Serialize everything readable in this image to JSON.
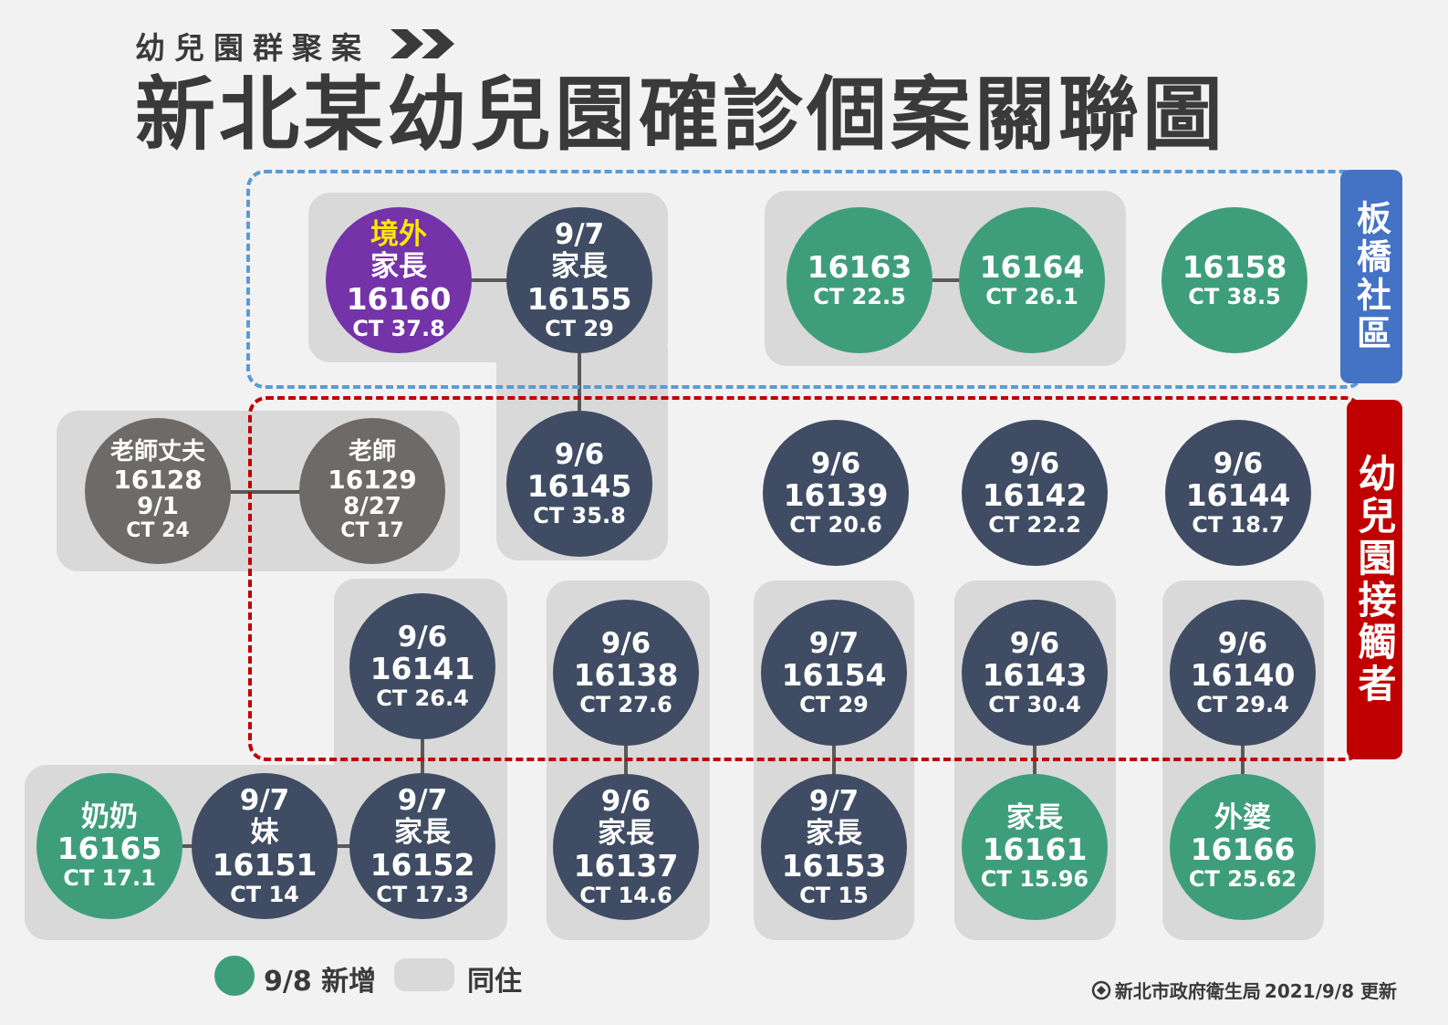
{
  "header": {
    "subtitle": "幼兒園群聚案",
    "title": "新北某幼兒園確診個案關聯圖"
  },
  "regions": {
    "banqiao": "板橋社區",
    "kindergarten": "幼兒園接觸者"
  },
  "cases": {
    "c16160": {
      "tag": "境外",
      "label": "家長",
      "id": "16160",
      "ct": "CT 37.8"
    },
    "c16155": {
      "date": "9/7",
      "label": "家長",
      "id": "16155",
      "ct": "CT 29"
    },
    "c16163": {
      "id": "16163",
      "ct": "CT 22.5"
    },
    "c16164": {
      "id": "16164",
      "ct": "CT 26.1"
    },
    "c16158": {
      "id": "16158",
      "ct": "CT 38.5"
    },
    "c16128": {
      "label": "老師丈夫",
      "id": "16128",
      "date": "9/1",
      "ct": "CT 24"
    },
    "c16129": {
      "label": "老師",
      "id": "16129",
      "date": "8/27",
      "ct": "CT 17"
    },
    "c16145": {
      "date": "9/6",
      "id": "16145",
      "ct": "CT 35.8"
    },
    "c16139": {
      "date": "9/6",
      "id": "16139",
      "ct": "CT 20.6"
    },
    "c16142": {
      "date": "9/6",
      "id": "16142",
      "ct": "CT 22.2"
    },
    "c16144": {
      "date": "9/6",
      "id": "16144",
      "ct": "CT 18.7"
    },
    "c16141": {
      "date": "9/6",
      "id": "16141",
      "ct": "CT 26.4"
    },
    "c16138": {
      "date": "9/6",
      "id": "16138",
      "ct": "CT 27.6"
    },
    "c16154": {
      "date": "9/7",
      "id": "16154",
      "ct": "CT 29"
    },
    "c16143": {
      "date": "9/6",
      "id": "16143",
      "ct": "CT 30.4"
    },
    "c16140": {
      "date": "9/6",
      "id": "16140",
      "ct": "CT 29.4"
    },
    "c16165": {
      "label": "奶奶",
      "id": "16165",
      "ct": "CT 17.1"
    },
    "c16151": {
      "date": "9/7",
      "label": "妹",
      "id": "16151",
      "ct": "CT 14"
    },
    "c16152": {
      "date": "9/7",
      "label": "家長",
      "id": "16152",
      "ct": "CT 17.3"
    },
    "c16137": {
      "date": "9/6",
      "label": "家長",
      "id": "16137",
      "ct": "CT 14.6"
    },
    "c16153": {
      "date": "9/7",
      "label": "家長",
      "id": "16153",
      "ct": "CT 15"
    },
    "c16161": {
      "label": "家長",
      "id": "16161",
      "ct": "CT 15.96"
    },
    "c16166": {
      "label": "外婆",
      "id": "16166",
      "ct": "CT 25.62"
    }
  },
  "legend": {
    "new": "9/8 新增",
    "cohabit": "同住"
  },
  "footer": {
    "source": "新北市政府衛生局",
    "updated": "2021/9/8 更新"
  },
  "colors": {
    "navy": "#3f4c63",
    "green": "#3e9e7c",
    "purple": "#7433a8",
    "gray": "#6d6a67",
    "blue_region": "#5a9bd5",
    "red_region": "#c00000"
  }
}
